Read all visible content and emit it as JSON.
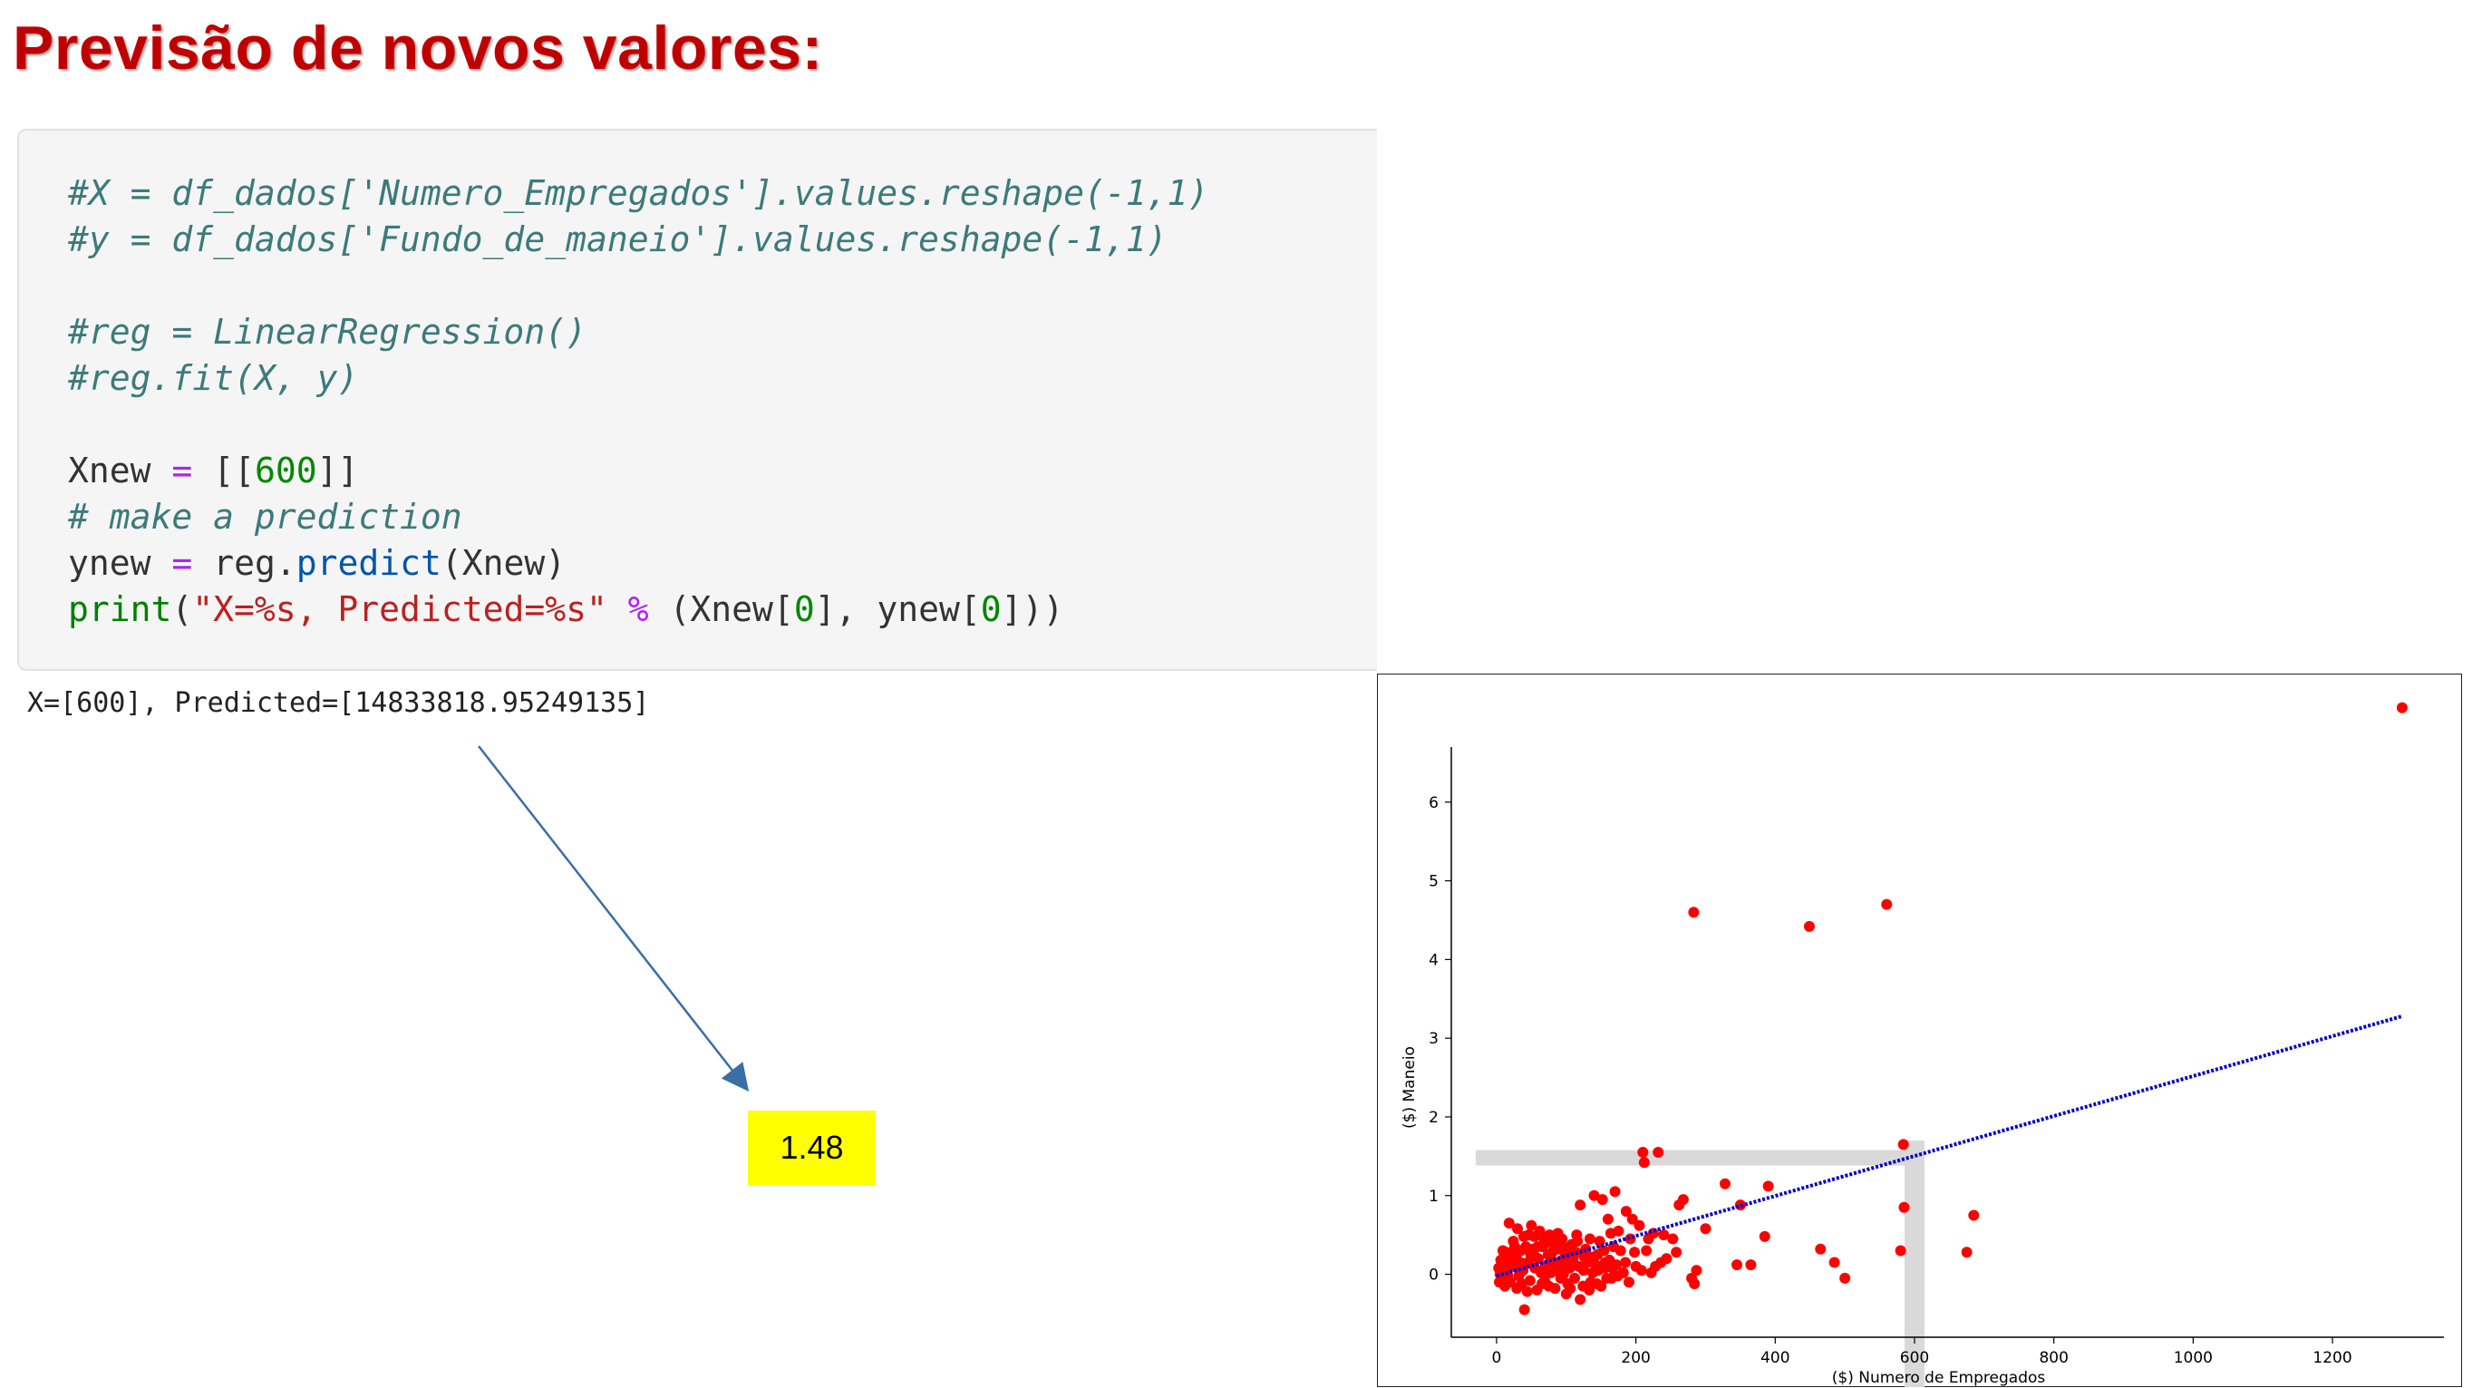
{
  "slide": {
    "title": "Previsão de novos valores:"
  },
  "code_cell": {
    "lines": [
      "#X = df_dados['Numero_Empregados'].values.reshape(-1,1)",
      "#y = df_dados['Fundo_de_maneio'].values.reshape(-1,1)",
      "",
      "#reg = LinearRegression()",
      "#reg.fit(X, y)",
      "",
      "Xnew = [[600]]",
      "# make a prediction",
      "ynew = reg.predict(Xnew)",
      "print(\"X=%s, Predicted=%s\" % (Xnew[0], ynew[0]))"
    ],
    "output": "X=[600], Predicted=[14833818.95249135]"
  },
  "callout": {
    "value": "1.48",
    "color": "#ffff00",
    "arrow_color": "#3a6ea5"
  },
  "chart_data": {
    "type": "scatter",
    "xlabel": "($) Numero de Empregados",
    "ylabel": "($) Maneio",
    "xlim": [
      -65,
      1360
    ],
    "ylim": [
      -0.8,
      6.7
    ],
    "x_ticks": [
      0,
      200,
      400,
      600,
      800,
      1000,
      1200
    ],
    "y_ticks": [
      0,
      1,
      2,
      3,
      4,
      5,
      6
    ],
    "grid": false,
    "point_color": "#ff0000",
    "line_color": "#0000cc",
    "highlight_color": "#d9d9d9",
    "regression_line": {
      "x": [
        0,
        1300
      ],
      "y": [
        -0.02,
        3.28
      ]
    },
    "highlight": {
      "x": 600,
      "y": 1.48
    },
    "series": [
      {
        "points": [
          [
            1300,
            7.2
          ],
          [
            283,
            4.6
          ],
          [
            449,
            4.42
          ],
          [
            560,
            4.7
          ],
          [
            584,
            1.65
          ],
          [
            210,
            1.55
          ],
          [
            232,
            1.55
          ],
          [
            212,
            1.42
          ],
          [
            585,
            0.85
          ],
          [
            580,
            0.3
          ],
          [
            328,
            1.15
          ],
          [
            390,
            1.12
          ],
          [
            350,
            0.88
          ],
          [
            300,
            0.58
          ],
          [
            385,
            0.48
          ],
          [
            465,
            0.32
          ],
          [
            485,
            0.15
          ],
          [
            500,
            -0.05
          ],
          [
            675,
            0.28
          ],
          [
            685,
            0.75
          ],
          [
            345,
            0.12
          ],
          [
            365,
            0.12
          ],
          [
            280,
            -0.05
          ],
          [
            284,
            -0.12
          ],
          [
            287,
            0.05
          ],
          [
            258,
            0.28
          ],
          [
            253,
            0.45
          ],
          [
            262,
            0.88
          ],
          [
            268,
            0.95
          ],
          [
            240,
            0.5
          ],
          [
            236,
            0.15
          ],
          [
            244,
            0.2
          ],
          [
            170,
            1.05
          ],
          [
            160,
            0.7
          ],
          [
            152,
            0.95
          ],
          [
            140,
            1.0
          ],
          [
            120,
            0.88
          ],
          [
            115,
            0.5
          ],
          [
            195,
            0.7
          ],
          [
            186,
            0.8
          ],
          [
            205,
            0.62
          ],
          [
            178,
            0.3
          ],
          [
            200,
            0.1
          ],
          [
            190,
            -0.1
          ],
          [
            165,
            -0.05
          ],
          [
            150,
            -0.15
          ],
          [
            133,
            -0.2
          ],
          [
            100,
            -0.25
          ],
          [
            120,
            -0.32
          ],
          [
            40,
            -0.45
          ],
          [
            62,
            0.55
          ],
          [
            50,
            0.62
          ],
          [
            18,
            0.65
          ],
          [
            30,
            0.58
          ],
          [
            88,
            0.52
          ],
          [
            72,
            0.4
          ],
          [
            95,
            0.35
          ],
          [
            80,
            0.28
          ],
          [
            60,
            0.2
          ],
          [
            45,
            0.15
          ],
          [
            35,
            0.3
          ],
          [
            25,
            0.1
          ],
          [
            15,
            0.05
          ],
          [
            8,
            -0.05
          ],
          [
            5,
            0.0
          ],
          [
            10,
            0.12
          ],
          [
            20,
            -0.1
          ],
          [
            28,
            0.22
          ],
          [
            38,
            0.05
          ],
          [
            48,
            -0.08
          ],
          [
            55,
            0.08
          ],
          [
            65,
            -0.12
          ],
          [
            70,
            0.1
          ],
          [
            78,
            0.02
          ],
          [
            85,
            0.12
          ],
          [
            92,
            -0.05
          ],
          [
            105,
            0.08
          ],
          [
            110,
            0.2
          ],
          [
            125,
            0.05
          ],
          [
            130,
            0.15
          ],
          [
            138,
            0.02
          ],
          [
            145,
            0.25
          ],
          [
            155,
            0.08
          ],
          [
            162,
            0.18
          ],
          [
            172,
            0.12
          ],
          [
            182,
            0.02
          ],
          [
            198,
            0.28
          ],
          [
            215,
            0.3
          ],
          [
            222,
            0.02
          ],
          [
            228,
            0.1
          ],
          [
            3,
            0.08
          ],
          [
            12,
            -0.15
          ],
          [
            22,
            0.25
          ],
          [
            32,
            -0.02
          ],
          [
            42,
            0.35
          ],
          [
            52,
            0.32
          ],
          [
            58,
            -0.2
          ],
          [
            68,
            0.45
          ],
          [
            75,
            -0.15
          ],
          [
            82,
            0.4
          ],
          [
            90,
            0.15
          ],
          [
            98,
            0.22
          ],
          [
            102,
            -0.12
          ],
          [
            108,
            0.38
          ],
          [
            112,
            -0.05
          ],
          [
            118,
            0.1
          ],
          [
            128,
            0.32
          ],
          [
            135,
            -0.1
          ],
          [
            142,
            0.12
          ],
          [
            148,
            0.42
          ],
          [
            158,
            -0.05
          ],
          [
            168,
            0.35
          ],
          [
            175,
            0.55
          ],
          [
            185,
            0.15
          ],
          [
            192,
            0.45
          ],
          [
            208,
            0.05
          ],
          [
            218,
            0.45
          ],
          [
            225,
            0.52
          ],
          [
            6,
            0.18
          ],
          [
            14,
            0.28
          ],
          [
            24,
            0.42
          ],
          [
            34,
            0.15
          ],
          [
            44,
            -0.22
          ],
          [
            54,
            0.48
          ],
          [
            64,
            0.02
          ],
          [
            74,
            0.25
          ],
          [
            84,
            -0.18
          ],
          [
            94,
            0.45
          ],
          [
            104,
            0.3
          ],
          [
            114,
            0.28
          ],
          [
            124,
            -0.15
          ],
          [
            134,
            0.45
          ],
          [
            144,
            -0.12
          ],
          [
            154,
            0.3
          ],
          [
            164,
            0.52
          ],
          [
            174,
            -0.02
          ],
          [
            16,
            -0.02
          ],
          [
            26,
            0.35
          ],
          [
            36,
            -0.12
          ],
          [
            46,
            0.5
          ],
          [
            56,
            0.22
          ],
          [
            66,
            0.35
          ],
          [
            76,
            0.5
          ],
          [
            86,
            0.05
          ],
          [
            96,
            0.0
          ],
          [
            106,
            -0.18
          ],
          [
            116,
            0.42
          ],
          [
            126,
            0.22
          ],
          [
            136,
            0.22
          ],
          [
            146,
            0.05
          ],
          [
            156,
            0.15
          ],
          [
            166,
            0.08
          ],
          [
            4,
            -0.1
          ],
          [
            9,
            0.3
          ],
          [
            19,
            0.18
          ],
          [
            29,
            -0.18
          ],
          [
            39,
            0.48
          ],
          [
            49,
            0.25
          ],
          [
            59,
            0.35
          ],
          [
            69,
            -0.08
          ],
          [
            79,
            0.18
          ],
          [
            89,
            0.32
          ],
          [
            99,
            0.12
          ]
        ]
      }
    ]
  }
}
